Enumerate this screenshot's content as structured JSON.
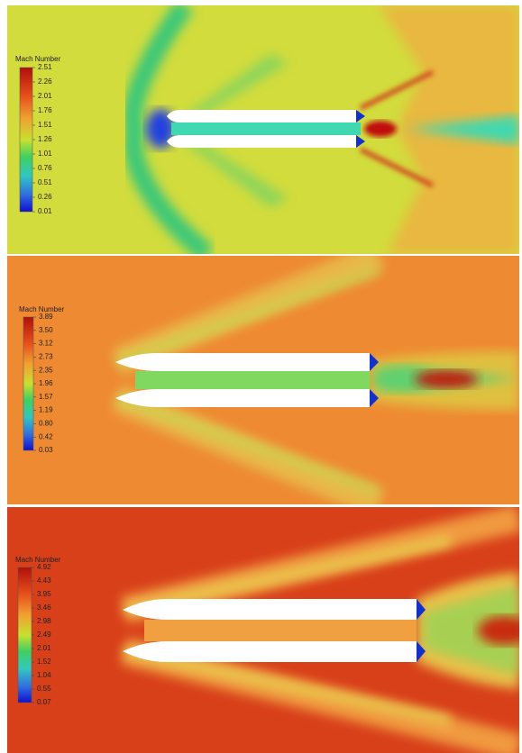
{
  "panels": [
    {
      "legend_title": "Mach Number",
      "ticks": [
        "2.51",
        "2.26",
        "2.01",
        "1.76",
        "1.51",
        "1.26",
        "1.01",
        "0.76",
        "0.51",
        "0.26",
        "0.01"
      ]
    },
    {
      "legend_title": "Mach Number",
      "ticks": [
        "3.89",
        "3.50",
        "3.12",
        "2.73",
        "2.35",
        "1.96",
        "1.57",
        "1.19",
        "0.80",
        "0.42",
        "0.03"
      ]
    },
    {
      "legend_title": "Mach Number",
      "ticks": [
        "4.92",
        "4.43",
        "3.95",
        "3.46",
        "2.98",
        "2.49",
        "2.01",
        "1.52",
        "1.04",
        "0.55",
        "0.07"
      ]
    }
  ]
}
